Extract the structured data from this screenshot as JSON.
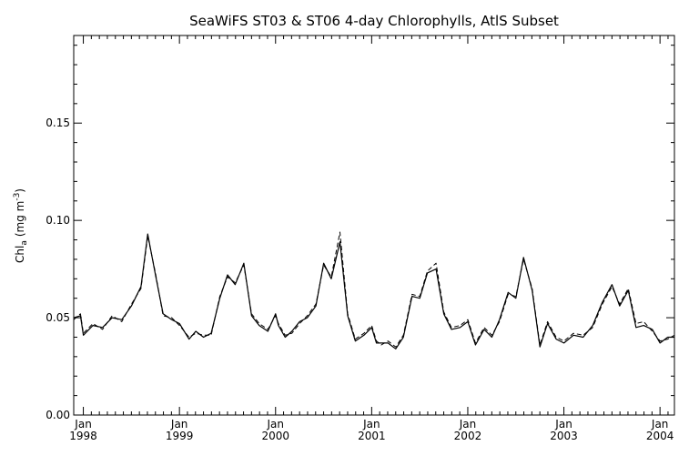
{
  "chart_data": {
    "type": "line",
    "title": "SeaWiFS ST03 & ST06 4-day Chlorophylls, AtlS Subset",
    "ylabel": "Chl",
    "ylabel_sub": "a",
    "ylabel_unit_open": "(mg m",
    "ylabel_unit_sup": "-3",
    "ylabel_unit_close": ")",
    "ylim": [
      0.0,
      0.195
    ],
    "y_ticks": [
      {
        "value": 0.0,
        "label": "0.00"
      },
      {
        "value": 0.05,
        "label": "0.05"
      },
      {
        "value": 0.1,
        "label": "0.10"
      },
      {
        "value": 0.15,
        "label": "0.15"
      }
    ],
    "xlim": [
      1997.9,
      2004.15
    ],
    "x_ticks": [
      {
        "value": 1998,
        "month": "Jan",
        "year": "1998"
      },
      {
        "value": 1999,
        "month": "Jan",
        "year": "1999"
      },
      {
        "value": 2000,
        "month": "Jan",
        "year": "2000"
      },
      {
        "value": 2001,
        "month": "Jan",
        "year": "2001"
      },
      {
        "value": 2002,
        "month": "Jan",
        "year": "2002"
      },
      {
        "value": 2003,
        "month": "Jan",
        "year": "2003"
      },
      {
        "value": 2004,
        "month": "Jan",
        "year": "2004"
      }
    ],
    "grid": false,
    "series": [
      {
        "style": "solid",
        "x": [
          1997.9,
          1997.97,
          1998.0,
          1998.1,
          1998.2,
          1998.3,
          1998.4,
          1998.5,
          1998.6,
          1998.67,
          1998.75,
          1998.83,
          1998.92,
          1999.0,
          1999.1,
          1999.17,
          1999.25,
          1999.33,
          1999.42,
          1999.5,
          1999.58,
          1999.67,
          1999.75,
          1999.83,
          1999.92,
          2000.0,
          2000.03,
          2000.1,
          2000.17,
          2000.25,
          2000.33,
          2000.42,
          2000.5,
          2000.58,
          2000.67,
          2000.75,
          2000.83,
          2000.92,
          2001.0,
          2001.05,
          2001.1,
          2001.17,
          2001.25,
          2001.33,
          2001.42,
          2001.5,
          2001.58,
          2001.67,
          2001.75,
          2001.83,
          2001.92,
          2002.0,
          2002.08,
          2002.17,
          2002.25,
          2002.33,
          2002.42,
          2002.5,
          2002.58,
          2002.67,
          2002.75,
          2002.83,
          2002.92,
          2003.0,
          2003.1,
          2003.2,
          2003.3,
          2003.4,
          2003.5,
          2003.58,
          2003.67,
          2003.75,
          2003.83,
          2003.92,
          2004.0,
          2004.08,
          2004.15
        ],
        "y": [
          0.05,
          0.051,
          0.041,
          0.046,
          0.045,
          0.05,
          0.049,
          0.056,
          0.066,
          0.093,
          0.072,
          0.052,
          0.049,
          0.047,
          0.039,
          0.043,
          0.04,
          0.042,
          0.06,
          0.072,
          0.067,
          0.078,
          0.051,
          0.046,
          0.043,
          0.052,
          0.046,
          0.04,
          0.043,
          0.048,
          0.05,
          0.056,
          0.078,
          0.07,
          0.089,
          0.051,
          0.038,
          0.041,
          0.045,
          0.037,
          0.037,
          0.037,
          0.034,
          0.04,
          0.061,
          0.06,
          0.073,
          0.075,
          0.052,
          0.044,
          0.045,
          0.048,
          0.036,
          0.044,
          0.04,
          0.049,
          0.063,
          0.06,
          0.081,
          0.064,
          0.035,
          0.047,
          0.039,
          0.037,
          0.041,
          0.04,
          0.046,
          0.058,
          0.067,
          0.056,
          0.064,
          0.045,
          0.046,
          0.044,
          0.037,
          0.04,
          0.04
        ]
      },
      {
        "style": "dashed",
        "x": [
          1997.9,
          1997.97,
          1998.0,
          1998.1,
          1998.2,
          1998.3,
          1998.4,
          1998.5,
          1998.6,
          1998.67,
          1998.75,
          1998.83,
          1998.92,
          1999.0,
          1999.1,
          1999.17,
          1999.25,
          1999.33,
          1999.42,
          1999.5,
          1999.58,
          1999.67,
          1999.75,
          1999.83,
          1999.92,
          2000.0,
          2000.03,
          2000.1,
          2000.17,
          2000.25,
          2000.33,
          2000.42,
          2000.5,
          2000.58,
          2000.67,
          2000.75,
          2000.83,
          2000.92,
          2001.0,
          2001.05,
          2001.1,
          2001.17,
          2001.25,
          2001.33,
          2001.42,
          2001.5,
          2001.58,
          2001.67,
          2001.75,
          2001.83,
          2001.92,
          2002.0,
          2002.08,
          2002.17,
          2002.25,
          2002.33,
          2002.42,
          2002.5,
          2002.58,
          2002.67,
          2002.75,
          2002.83,
          2002.92,
          2003.0,
          2003.1,
          2003.2,
          2003.3,
          2003.4,
          2003.5,
          2003.58,
          2003.67,
          2003.75,
          2003.83,
          2003.92,
          2004.0,
          2004.08,
          2004.15
        ],
        "y": [
          0.049,
          0.052,
          0.042,
          0.047,
          0.044,
          0.051,
          0.048,
          0.057,
          0.065,
          0.092,
          0.073,
          0.051,
          0.05,
          0.046,
          0.04,
          0.042,
          0.041,
          0.041,
          0.061,
          0.071,
          0.068,
          0.077,
          0.052,
          0.047,
          0.044,
          0.051,
          0.047,
          0.041,
          0.042,
          0.047,
          0.051,
          0.057,
          0.077,
          0.071,
          0.094,
          0.052,
          0.039,
          0.042,
          0.046,
          0.038,
          0.036,
          0.038,
          0.035,
          0.041,
          0.062,
          0.061,
          0.074,
          0.078,
          0.053,
          0.045,
          0.046,
          0.049,
          0.037,
          0.045,
          0.041,
          0.048,
          0.062,
          0.061,
          0.08,
          0.065,
          0.036,
          0.048,
          0.04,
          0.038,
          0.042,
          0.041,
          0.045,
          0.057,
          0.066,
          0.057,
          0.065,
          0.047,
          0.048,
          0.043,
          0.038,
          0.039,
          0.041
        ]
      }
    ]
  }
}
